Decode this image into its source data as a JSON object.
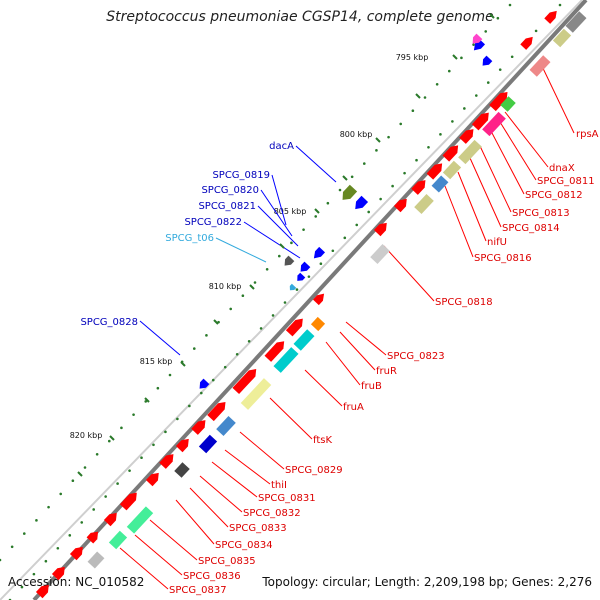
{
  "title": "Streptococcus pneumoniae CGSP14, complete genome",
  "footer": {
    "accession": "Accession: NC_010582",
    "summary": "Topology: circular; Length: 2,209,198 bp; Genes: 2,276"
  },
  "colors": {
    "backbone": "#7a7a7a",
    "forward_gene": "#ff0000",
    "reverse_gene": "#0000ff",
    "tick": "#2a7a2a",
    "forward_label": "#dd0000",
    "reverse_label": "#0000bb",
    "trna_label": "#33aadd"
  },
  "kbp_marks": [
    "795 kbp",
    "800 kbp",
    "805 kbp",
    "810 kbp",
    "815 kbp",
    "820 kbp"
  ],
  "labels_forward": [
    "rpsA",
    "dnaX",
    "SPCG_0811",
    "SPCG_0812",
    "SPCG_0813",
    "SPCG_0814",
    "nifU",
    "SPCG_0816",
    "SPCG_0818",
    "SPCG_0823",
    "fruR",
    "fruB",
    "fruA",
    "ftsK",
    "SPCG_0829",
    "thiI",
    "SPCG_0831",
    "SPCG_0832",
    "SPCG_0833",
    "SPCG_0834",
    "SPCG_0835",
    "SPCG_0836",
    "SPCG_0837"
  ],
  "labels_reverse": [
    "dacA",
    "SPCG_0819",
    "SPCG_0820",
    "SPCG_0821",
    "SPCG_0822",
    "SPCG_t06",
    "SPCG_0828"
  ]
}
